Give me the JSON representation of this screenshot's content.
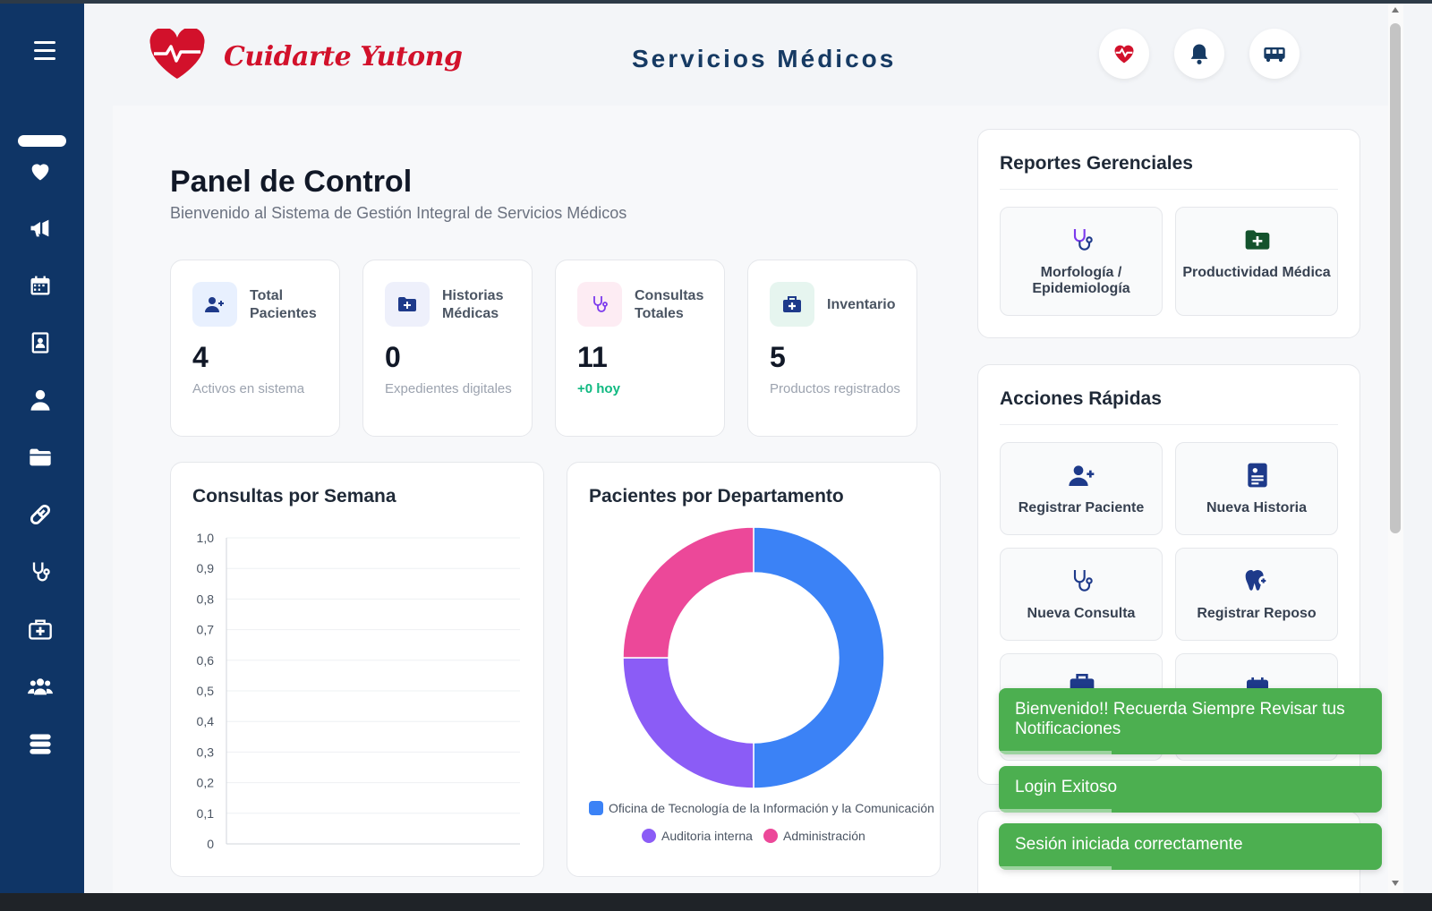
{
  "header": {
    "brand": "Cuidarte Yutong",
    "title": "Servicios Médicos",
    "buttons": [
      "heart-pulse-icon",
      "bell-icon",
      "bus-icon"
    ]
  },
  "sidebar": {
    "items": [
      "heart-icon",
      "megaphone-icon",
      "calendar-icon",
      "id-badge-icon",
      "user-icon",
      "folder-icon",
      "pills-icon",
      "stethoscope-icon",
      "medkit-icon",
      "users-icon",
      "database-icon"
    ]
  },
  "page": {
    "title": "Panel de Control",
    "subtitle": "Bienvenido al Sistema de Gestión Integral de Servicios Médicos"
  },
  "stats": [
    {
      "label": "Total Pacientes",
      "value": "4",
      "foot": "Activos en sistema",
      "icon": "user-plus-icon",
      "color": "#1e3a8a",
      "bg": "#e8f0fe"
    },
    {
      "label": "Historias Médicas",
      "value": "0",
      "foot": "Expedientes digitales",
      "icon": "folder-plus-icon",
      "color": "#1e3a8a",
      "bg": "#eef0fb"
    },
    {
      "label": "Consultas Totales",
      "value": "11",
      "foot": "+0 hoy",
      "icon": "stethoscope-icon",
      "color": "#7c3aed",
      "bg": "#fdecf3"
    },
    {
      "label": "Inventario",
      "value": "5",
      "foot": "Productos registrados",
      "icon": "medkit-icon",
      "color": "#1e3a8a",
      "bg": "#e6f5ef"
    }
  ],
  "weekly_chart": {
    "title": "Consultas por Semana"
  },
  "dept_chart": {
    "title": "Pacientes por Departamento"
  },
  "chart_data": [
    {
      "type": "line",
      "title": "Consultas por Semana",
      "xlabel": "",
      "ylabel": "",
      "ylim": [
        0,
        1
      ],
      "yticks": [
        "1,0",
        "0,9",
        "0,8",
        "0,7",
        "0,6",
        "0,5",
        "0,4",
        "0,3",
        "0,2",
        "0,1",
        "0"
      ],
      "series": []
    },
    {
      "type": "pie",
      "title": "Pacientes por Departamento",
      "donut": true,
      "labels": [
        "Oficina de Tecnología de la Información y la Comunicación",
        "Auditoria interna",
        "Administración"
      ],
      "values": [
        2,
        1,
        1
      ],
      "colors": [
        "#3b82f6",
        "#8b5cf6",
        "#ec4899"
      ],
      "legend": "bottom"
    }
  ],
  "reports": {
    "title": "Reportes Gerenciales",
    "items": [
      {
        "label": "Morfología / Epidemiología",
        "icon": "stethoscope-icon"
      },
      {
        "label": "Productividad Médica",
        "icon": "folder-plus-icon"
      }
    ]
  },
  "quick": {
    "title": "Acciones Rápidas",
    "items": [
      {
        "label": "Registrar Paciente",
        "icon": "user-plus-icon"
      },
      {
        "label": "Nueva Historia",
        "icon": "file-medical-icon"
      },
      {
        "label": "Nueva Consulta",
        "icon": "stethoscope-icon"
      },
      {
        "label": "Registrar Reposo",
        "icon": "tooth-icon"
      }
    ]
  },
  "toasts": [
    "Bienvenido!! Recuerda Siempre Revisar tus Notificaciones",
    "Login Exitoso",
    "Sesión iniciada correctamente"
  ],
  "colors": {
    "sidebar": "#0f3566",
    "brand": "#d2112b",
    "title": "#163a63",
    "toast": "#4caf50",
    "positive": "#10b981"
  }
}
